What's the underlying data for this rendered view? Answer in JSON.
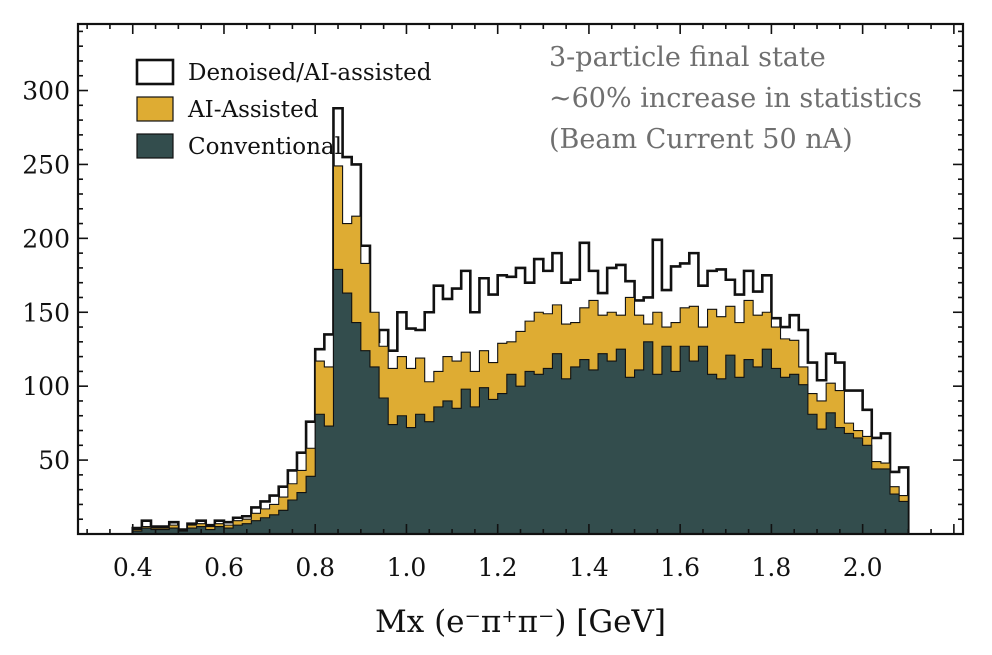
{
  "chart_data": {
    "type": "histogram",
    "title": "",
    "xlabel": "Mx (e⁻π⁺π⁻) [GeV]",
    "ylabel": "",
    "xlim": [
      0.28,
      2.22
    ],
    "ylim": [
      0,
      345
    ],
    "xticks": [
      "0.4",
      "0.6",
      "0.8",
      "1.0",
      "1.2",
      "1.4",
      "1.6",
      "1.8",
      "2.0"
    ],
    "yticks": [
      "50",
      "100",
      "150",
      "200",
      "250",
      "300"
    ],
    "annotation_lines": [
      "3-particle final state",
      "~60% increase in statistics",
      "(Beam Current 50 nA)"
    ],
    "legend_position": "top-left",
    "bin_start": 0.4,
    "bin_width": 0.02,
    "series": [
      {
        "name": "Denoised/AI-assisted",
        "style": "outline",
        "color": "#111111",
        "values": [
          4,
          9,
          5,
          5,
          8,
          3,
          7,
          9,
          6,
          9,
          8,
          11,
          12,
          18,
          22,
          26,
          32,
          43,
          55,
          76,
          125,
          135,
          288,
          255,
          250,
          195,
          130,
          138,
          124,
          150,
          139,
          138,
          150,
          168,
          159,
          166,
          178,
          150,
          173,
          162,
          175,
          174,
          180,
          170,
          186,
          178,
          190,
          170,
          172,
          197,
          178,
          163,
          180,
          182,
          171,
          158,
          160,
          199,
          165,
          181,
          183,
          190,
          168,
          178,
          179,
          172,
          162,
          178,
          164,
          175,
          146,
          140,
          148,
          138,
          116,
          104,
          122,
          116,
          97,
          97,
          84,
          65,
          68,
          42,
          45
        ]
      },
      {
        "name": "AI-Assisted",
        "style": "filled",
        "color": "#deac33",
        "values": [
          3,
          5,
          4,
          4,
          6,
          2,
          6,
          7,
          5,
          7,
          6,
          9,
          10,
          14,
          17,
          20,
          25,
          34,
          43,
          58,
          117,
          113,
          249,
          210,
          215,
          183,
          150,
          127,
          112,
          120,
          112,
          119,
          103,
          110,
          120,
          117,
          123,
          110,
          124,
          116,
          129,
          130,
          137,
          144,
          150,
          149,
          155,
          142,
          143,
          153,
          158,
          148,
          150,
          148,
          160,
          148,
          142,
          150,
          140,
          143,
          153,
          154,
          140,
          152,
          147,
          154,
          143,
          158,
          148,
          150,
          140,
          132,
          131,
          113,
          95,
          90,
          102,
          97,
          75,
          70,
          66,
          49,
          48,
          32,
          26
        ]
      },
      {
        "name": "Conventional",
        "style": "filled",
        "color": "#334d4d",
        "values": [
          2,
          4,
          3,
          3,
          4,
          2,
          4,
          5,
          3,
          5,
          4,
          6,
          7,
          9,
          11,
          13,
          16,
          23,
          28,
          39,
          81,
          73,
          179,
          163,
          143,
          124,
          113,
          92,
          74,
          80,
          72,
          81,
          76,
          86,
          90,
          85,
          98,
          86,
          99,
          91,
          95,
          108,
          100,
          110,
          108,
          112,
          122,
          105,
          113,
          118,
          111,
          122,
          117,
          125,
          106,
          111,
          130,
          108,
          127,
          110,
          127,
          117,
          127,
          108,
          105,
          121,
          106,
          118,
          113,
          125,
          112,
          106,
          108,
          101,
          81,
          71,
          82,
          72,
          68,
          65,
          60,
          44,
          44,
          27,
          22
        ]
      }
    ]
  }
}
